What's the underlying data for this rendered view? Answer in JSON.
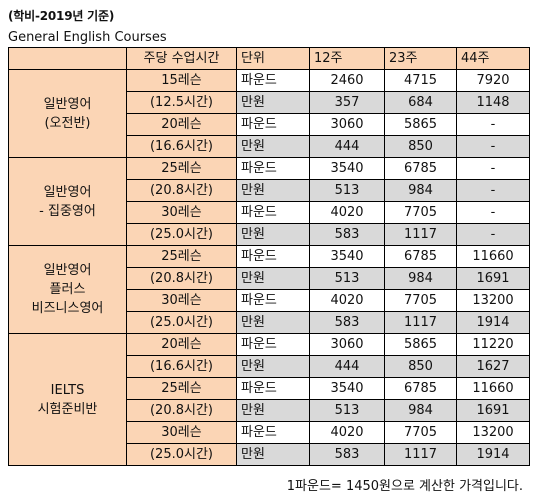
{
  "title": "(학비-2019년 기준)",
  "subtitle": "General English Courses",
  "table": {
    "headers": [
      "주당 수업시간",
      "단위",
      "12주",
      "23주",
      "44주"
    ],
    "groups": [
      {
        "course_lines": [
          "일반영어",
          "(오전반)"
        ],
        "lessons": [
          {
            "name": "15레슨",
            "hours": "(12.5시간)",
            "pound": {
              "unit": "파운드",
              "values": [
                "2460",
                "4715",
                "7920"
              ]
            },
            "won": {
              "unit": "만원",
              "values": [
                "357",
                "684",
                "1148"
              ]
            }
          },
          {
            "name": "20레슨",
            "hours": "(16.6시간)",
            "pound": {
              "unit": "파운드",
              "values": [
                "3060",
                "5865",
                "-"
              ]
            },
            "won": {
              "unit": "만원",
              "values": [
                "444",
                "850",
                "-"
              ]
            }
          }
        ]
      },
      {
        "course_lines": [
          "일반영어",
          "- 집중영어"
        ],
        "lessons": [
          {
            "name": "25레슨",
            "hours": "(20.8시간)",
            "pound": {
              "unit": "파운드",
              "values": [
                "3540",
                "6785",
                "-"
              ]
            },
            "won": {
              "unit": "만원",
              "values": [
                "513",
                "984",
                "-"
              ]
            }
          },
          {
            "name": "30레슨",
            "hours": "(25.0시간)",
            "pound": {
              "unit": "파운드",
              "values": [
                "4020",
                "7705",
                "-"
              ]
            },
            "won": {
              "unit": "만원",
              "values": [
                "583",
                "1117",
                "-"
              ]
            }
          }
        ]
      },
      {
        "course_lines": [
          "일반영어",
          "플러스",
          "비즈니스영어"
        ],
        "lessons": [
          {
            "name": "25레슨",
            "hours": "(20.8시간)",
            "pound": {
              "unit": "파운드",
              "values": [
                "3540",
                "6785",
                "11660"
              ]
            },
            "won": {
              "unit": "만원",
              "values": [
                "513",
                "984",
                "1691"
              ]
            }
          },
          {
            "name": "30레슨",
            "hours": "(25.0시간)",
            "pound": {
              "unit": "파운드",
              "values": [
                "4020",
                "7705",
                "13200"
              ]
            },
            "won": {
              "unit": "만원",
              "values": [
                "583",
                "1117",
                "1914"
              ]
            }
          }
        ]
      },
      {
        "course_lines": [
          "IELTS",
          "시험준비반"
        ],
        "lessons": [
          {
            "name": "20레슨",
            "hours": "(16.6시간)",
            "pound": {
              "unit": "파운드",
              "values": [
                "3060",
                "5865",
                "11220"
              ]
            },
            "won": {
              "unit": "만원",
              "values": [
                "444",
                "850",
                "1627"
              ]
            }
          },
          {
            "name": "25레슨",
            "hours": "(20.8시간)",
            "pound": {
              "unit": "파운드",
              "values": [
                "3540",
                "6785",
                "11660"
              ]
            },
            "won": {
              "unit": "만원",
              "values": [
                "513",
                "984",
                "1691"
              ]
            }
          },
          {
            "name": "30레슨",
            "hours": "(25.0시간)",
            "pound": {
              "unit": "파운드",
              "values": [
                "4020",
                "7705",
                "13200"
              ]
            },
            "won": {
              "unit": "만원",
              "values": [
                "583",
                "1117",
                "1914"
              ]
            }
          }
        ]
      }
    ]
  },
  "note": "1파운드= 1450원으로 계산한 가격입니다."
}
